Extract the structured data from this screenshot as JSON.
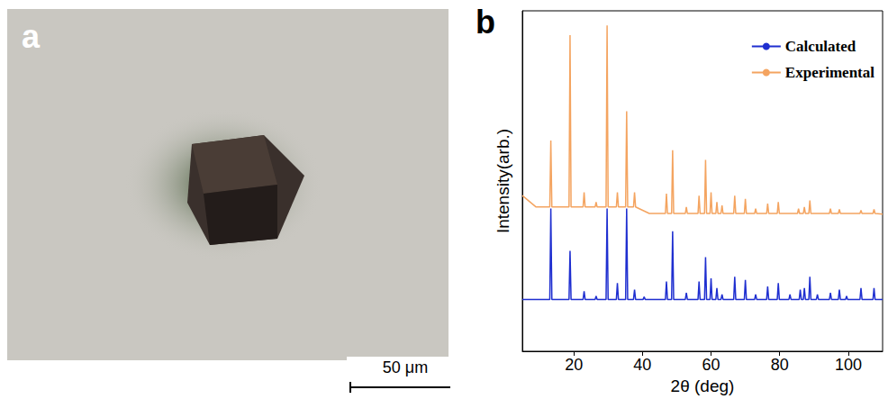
{
  "panel_a": {
    "label": "a",
    "scale_bar": "50 μm"
  },
  "chart_data": {
    "type": "line",
    "panel_label": "b",
    "x_label": "2θ (deg)",
    "y_label": "Intensity(arb.)",
    "xlim": [
      5,
      110
    ],
    "xticks": [
      20,
      40,
      60,
      80,
      100
    ],
    "ylim": [
      0,
      105
    ],
    "yticks": [],
    "tick_labels": "x",
    "grid": false,
    "legend": "upper right",
    "series": [
      {
        "name": "Calculated",
        "color": "#1f2fd0",
        "x": [
          5,
          13.0,
          13.3,
          13.6,
          18.6,
          18.9,
          19.2,
          22.7,
          23.0,
          23.3,
          26.2,
          26.5,
          26.8,
          29.4,
          29.7,
          30.0,
          32.4,
          32.7,
          33.0,
          35.1,
          35.4,
          35.7,
          37.4,
          37.7,
          38.0,
          40.2,
          40.5,
          40.8,
          46.7,
          47.0,
          47.3,
          48.5,
          48.8,
          49.1,
          52.5,
          52.8,
          53.1,
          56.2,
          56.5,
          56.8,
          58.1,
          58.4,
          58.7,
          59.7,
          60.0,
          60.3,
          61.4,
          61.7,
          62.0,
          62.9,
          63.2,
          63.5,
          66.6,
          66.9,
          67.2,
          69.7,
          70.0,
          70.3,
          72.7,
          73.0,
          73.3,
          76.2,
          76.5,
          76.8,
          79.3,
          79.6,
          79.9,
          82.7,
          83.0,
          83.3,
          85.7,
          86.0,
          86.3,
          86.9,
          87.2,
          87.5,
          88.5,
          88.8,
          89.1,
          90.7,
          91.0,
          91.3,
          94.5,
          94.8,
          95.1,
          97.1,
          97.4,
          97.7,
          99.2,
          99.5,
          99.8,
          103.4,
          103.7,
          104.0,
          107.2,
          107.5,
          107.8,
          110
        ],
        "values": [
          16,
          16,
          44,
          16,
          16,
          31,
          16,
          16,
          18.5,
          16,
          16,
          17,
          16,
          16,
          44,
          16,
          16,
          21,
          16,
          16,
          44,
          16,
          16,
          19,
          16,
          16,
          16.8,
          16,
          16,
          21.5,
          16,
          16,
          37,
          16,
          16,
          18,
          16,
          16,
          21.5,
          16,
          16,
          29,
          16,
          16,
          22.5,
          16,
          16,
          19.5,
          16,
          16,
          17.5,
          16,
          16,
          23,
          16,
          16,
          22,
          16,
          16,
          17.5,
          16,
          16,
          20,
          16,
          16,
          21,
          16,
          16,
          17.5,
          16,
          16,
          19,
          16,
          16,
          19.5,
          16,
          16,
          23,
          16,
          16,
          17.5,
          16,
          16,
          18,
          16,
          16,
          19,
          16,
          16,
          17,
          16,
          16,
          19.5,
          16,
          16,
          19.5,
          16,
          16
        ]
      },
      {
        "name": "Experimental",
        "color": "#f4a460",
        "x": [
          5,
          9,
          13.0,
          13.3,
          13.6,
          18.6,
          18.9,
          19.2,
          22.7,
          23.0,
          23.3,
          26.2,
          26.5,
          26.8,
          29.4,
          29.7,
          30.0,
          32.4,
          32.7,
          33.0,
          35.1,
          35.4,
          35.7,
          37.4,
          37.7,
          38.0,
          42,
          46.7,
          47.0,
          47.3,
          48.5,
          48.8,
          49.1,
          52.5,
          52.8,
          53.1,
          56.2,
          56.5,
          56.8,
          58.1,
          58.4,
          58.7,
          59.7,
          60.0,
          60.3,
          61.4,
          61.7,
          62.0,
          62.9,
          63.2,
          63.5,
          66.6,
          66.9,
          67.2,
          69.7,
          70.0,
          70.3,
          72.7,
          73.0,
          73.3,
          76.2,
          76.5,
          76.8,
          79.3,
          79.6,
          79.9,
          85.2,
          85.5,
          85.8,
          86.9,
          87.2,
          87.5,
          88.5,
          88.8,
          89.1,
          94.5,
          94.8,
          95.1,
          97.1,
          97.4,
          97.7,
          103.4,
          103.7,
          104.0,
          107.2,
          107.5,
          107.8,
          110
        ],
        "values": [
          48,
          44.5,
          44.5,
          65,
          44.5,
          44.5,
          97.5,
          44.5,
          44.5,
          49,
          44.5,
          44.5,
          46,
          44.5,
          44.5,
          100.5,
          44.5,
          44.5,
          49,
          44.5,
          44.5,
          74,
          44.5,
          44.5,
          49,
          44.5,
          42.5,
          42.5,
          48.6,
          42.5,
          42.5,
          62,
          42.5,
          42.5,
          44.5,
          42.5,
          42.5,
          48,
          42.5,
          42.5,
          59,
          42.5,
          42.5,
          49,
          42.5,
          42.5,
          46,
          42.5,
          42.5,
          45,
          42.5,
          42.5,
          48,
          42.5,
          42.5,
          47,
          42.5,
          42.5,
          44,
          42.5,
          42.5,
          45.5,
          42.5,
          42.5,
          46,
          42.5,
          42.5,
          44,
          42.5,
          42.5,
          44.5,
          42.5,
          42.5,
          46.5,
          42.5,
          42.5,
          44,
          42.5,
          42.5,
          43.8,
          42.5,
          42.5,
          43.5,
          42.5,
          42.5,
          43.8,
          42.5,
          42.3
        ]
      }
    ]
  }
}
